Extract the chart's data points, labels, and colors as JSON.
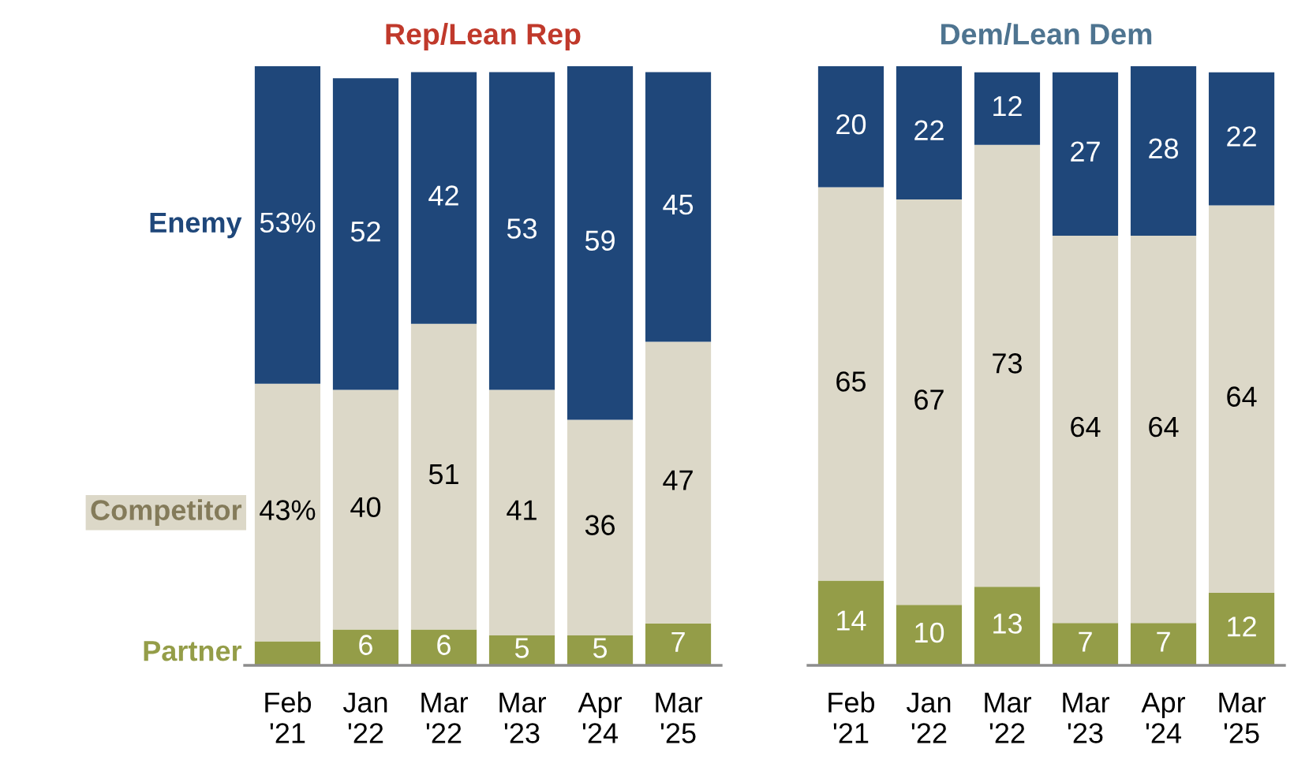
{
  "chart_data": [
    {
      "type": "bar",
      "stacked": true,
      "title": "Rep/Lean Rep",
      "categories": [
        "Feb\n'21",
        "Jan\n'22",
        "Mar\n'22",
        "Mar\n'23",
        "Apr\n'24",
        "Mar\n'25"
      ],
      "series": [
        {
          "name": "Partner",
          "color": "#949d48",
          "values": [
            4,
            6,
            6,
            5,
            5,
            7
          ],
          "value_labels": [
            null,
            "6",
            "6",
            "5",
            "5",
            "7"
          ]
        },
        {
          "name": "Competitor",
          "color": "#dcd8c8",
          "values": [
            43,
            40,
            51,
            41,
            36,
            47
          ],
          "value_labels": [
            "43%",
            "40",
            "51",
            "41",
            "36",
            "47"
          ]
        },
        {
          "name": "Enemy",
          "color": "#1f477a",
          "values": [
            53,
            52,
            42,
            53,
            59,
            45
          ],
          "value_labels": [
            "53%",
            "52",
            "42",
            "53",
            "59",
            "45"
          ]
        }
      ],
      "legend": false
    },
    {
      "type": "bar",
      "stacked": true,
      "title": "Dem/Lean Dem",
      "categories": [
        "Feb\n'21",
        "Jan\n'22",
        "Mar\n'22",
        "Mar\n'23",
        "Apr\n'24",
        "Mar\n'25"
      ],
      "series": [
        {
          "color": "#949d48",
          "values": [
            14,
            10,
            13,
            7,
            7,
            12
          ],
          "data_labels": true
        },
        {
          "color": "#dcd8c8",
          "values": [
            65,
            67,
            73,
            64,
            64,
            64
          ],
          "data_labels": true
        },
        {
          "color": "#1f477a",
          "values": [
            20,
            22,
            12,
            27,
            28,
            22
          ],
          "data_labels": true
        }
      ],
      "legend": false
    }
  ]
}
